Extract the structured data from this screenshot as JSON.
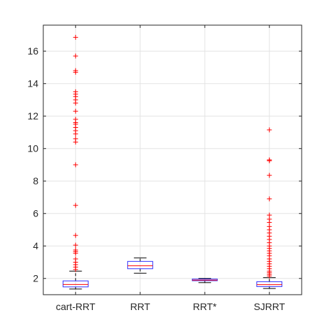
{
  "chart_data": {
    "type": "box",
    "grid": true,
    "ylim": [
      1,
      17.6
    ],
    "yticks": [
      2,
      4,
      6,
      8,
      10,
      12,
      14,
      16
    ],
    "ytick_labels": [
      "2",
      "4",
      "6",
      "8",
      "10",
      "12",
      "14",
      "16"
    ],
    "categories": [
      "cart-RRT",
      "RRT",
      "RRT*",
      "SJRRT"
    ],
    "boxes": [
      {
        "category": "cart-RRT",
        "whisker_low": 1.35,
        "q1": 1.48,
        "median": 1.63,
        "q3": 1.85,
        "whisker_high": 2.45,
        "outliers": [
          2.55,
          2.7,
          2.85,
          3.0,
          3.2,
          3.55,
          3.65,
          3.75,
          4.05,
          4.65,
          6.5,
          9.0,
          10.4,
          10.6,
          10.9,
          11.1,
          11.3,
          11.5,
          11.6,
          11.8,
          12.3,
          12.8,
          13.0,
          13.2,
          13.35,
          13.5,
          14.7,
          14.8,
          15.7,
          16.85
        ]
      },
      {
        "category": "RRT",
        "whisker_low": 2.32,
        "q1": 2.6,
        "median": 2.78,
        "q3": 3.05,
        "whisker_high": 3.27,
        "outliers": []
      },
      {
        "category": "RRT*",
        "whisker_low": 1.74,
        "q1": 1.86,
        "median": 1.9,
        "q3": 1.96,
        "whisker_high": 2.0,
        "outliers": []
      },
      {
        "category": "SJRRT",
        "whisker_low": 1.38,
        "q1": 1.5,
        "median": 1.62,
        "q3": 1.8,
        "whisker_high": 2.05,
        "outliers": [
          2.15,
          2.25,
          2.35,
          2.45,
          2.6,
          2.75,
          2.9,
          3.05,
          3.2,
          3.4,
          3.55,
          3.7,
          3.85,
          4.0,
          4.2,
          4.4,
          4.6,
          4.8,
          5.0,
          5.2,
          5.45,
          5.65,
          5.9,
          6.9,
          8.35,
          9.25,
          9.3,
          11.15
        ]
      }
    ],
    "colors": {
      "box": "#2f2fff",
      "median": "#ff0000",
      "whisker": "#000000",
      "outlier": "#ff0000",
      "grid": "#e3e3e3",
      "axis": "#262626"
    }
  }
}
